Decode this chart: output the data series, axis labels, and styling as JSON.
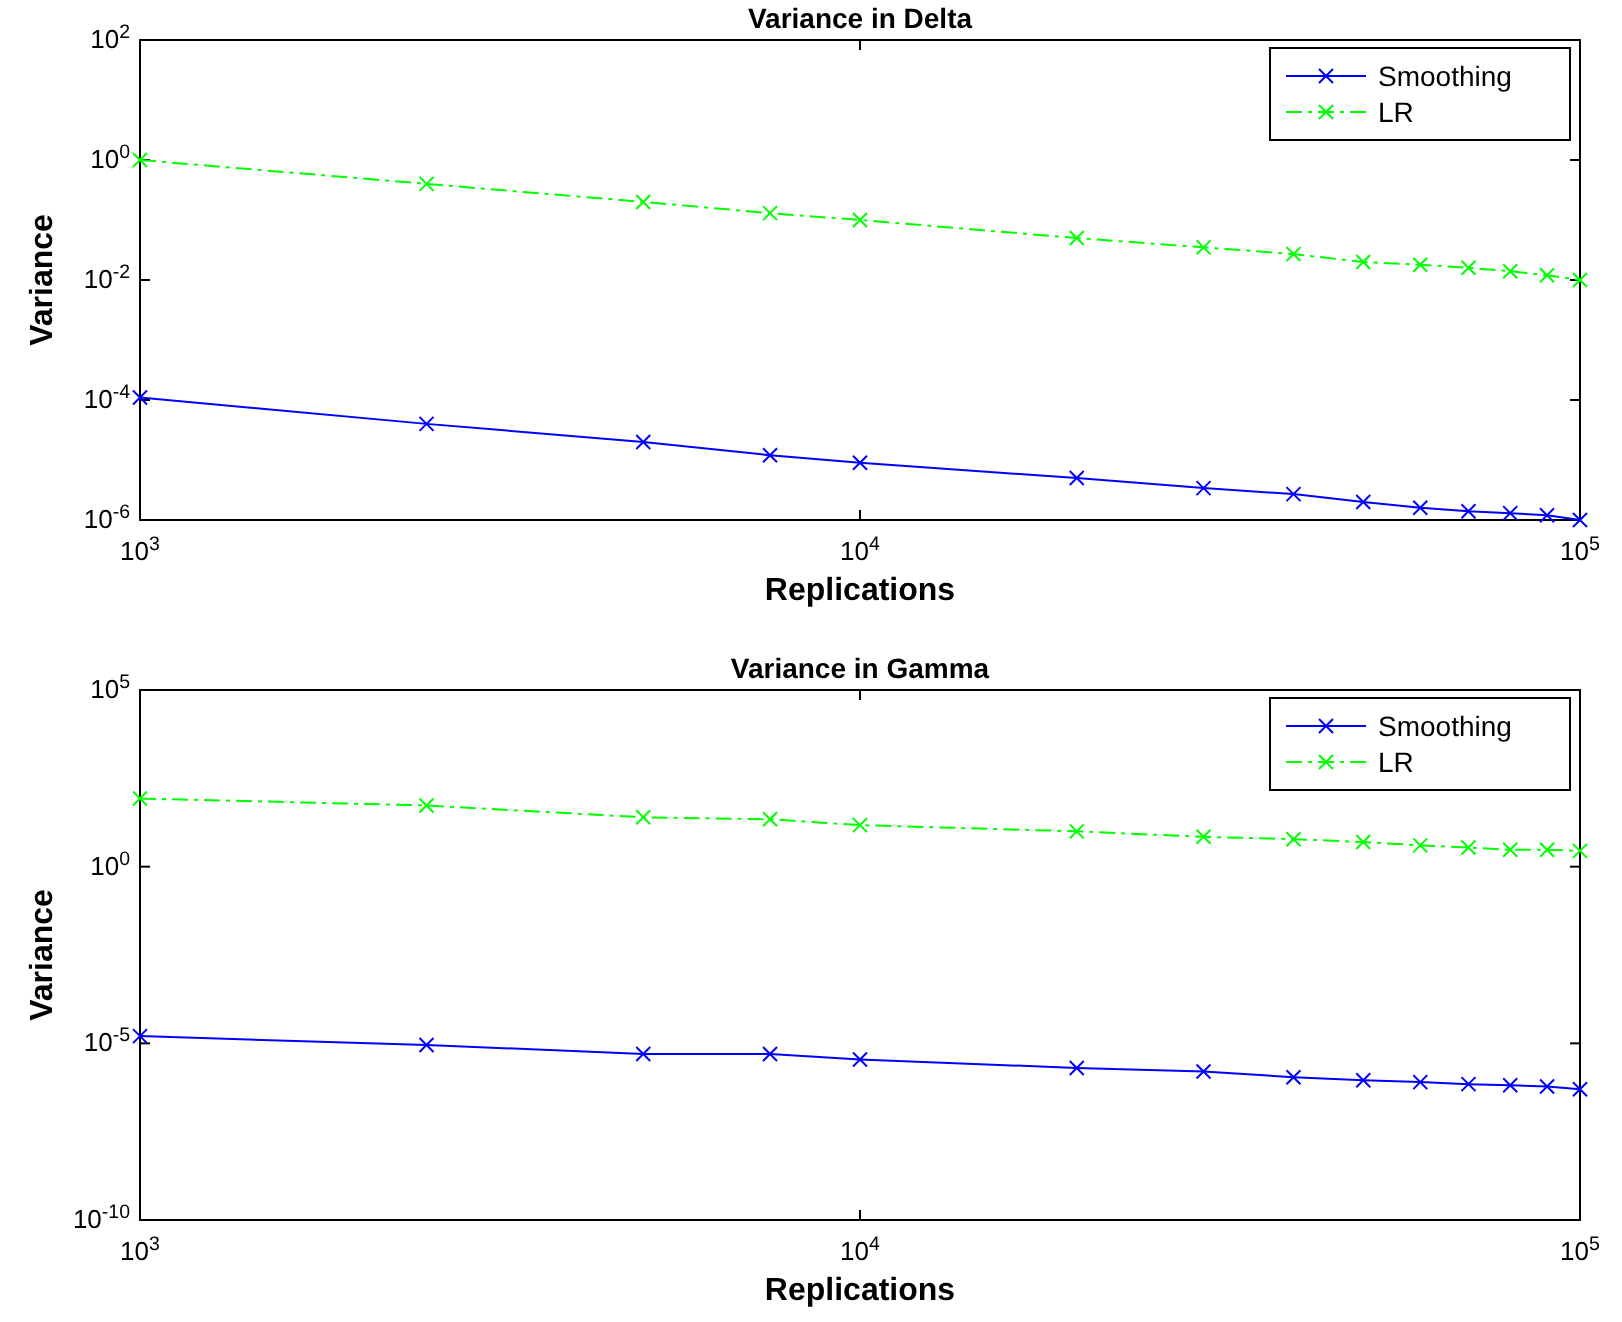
{
  "chart_data": [
    {
      "type": "line",
      "title": "Variance in Delta",
      "xlabel": "Replications",
      "ylabel": "Variance",
      "log": "xy",
      "x": [
        1000,
        2500,
        5000,
        7500,
        10000,
        20000,
        30000,
        40000,
        50000,
        60000,
        70000,
        80000,
        90000,
        100000
      ],
      "xlim": [
        1000,
        100000
      ],
      "xticks": [
        {
          "value": 1000,
          "label": "10$^{3}$"
        },
        {
          "value": 10000,
          "label": "10$^{4}$"
        },
        {
          "value": 100000,
          "label": "10$^{5}$"
        }
      ],
      "ylim": [
        1e-06,
        100
      ],
      "yticks": [
        {
          "value": 1e-06,
          "label": "10$^{-6}$"
        },
        {
          "value": 0.0001,
          "label": "10$^{-4}$"
        },
        {
          "value": 0.01,
          "label": "10$^{-2}$"
        },
        {
          "value": 1,
          "label": "10$^{0}$"
        },
        {
          "value": 100,
          "label": "10$^{2}$"
        }
      ],
      "legend": "top right",
      "grid": false,
      "series": [
        {
          "name": "Smoothing",
          "color": "#0000ff",
          "marker": "cross",
          "line_style": "solid",
          "values": [
            0.00011,
            4e-05,
            2e-05,
            1.2e-05,
            9e-06,
            5e-06,
            3.4e-06,
            2.7e-06,
            2e-06,
            1.6e-06,
            1.4e-06,
            1.3e-06,
            1.2e-06,
            1e-06
          ]
        },
        {
          "name": "LR",
          "color": "#00ff00",
          "marker": "cross",
          "line_style": "dashed",
          "values": [
            1,
            0.4,
            0.2,
            0.13,
            0.1,
            0.05,
            0.035,
            0.027,
            0.02,
            0.018,
            0.016,
            0.014,
            0.012,
            0.01
          ]
        }
      ]
    },
    {
      "type": "line",
      "title": "Variance in Gamma",
      "xlabel": "Replications",
      "ylabel": "Variance",
      "log": "xy",
      "x": [
        1000,
        2500,
        5000,
        7500,
        10000,
        20000,
        30000,
        40000,
        50000,
        60000,
        70000,
        80000,
        90000,
        100000
      ],
      "xlim": [
        1000,
        100000
      ],
      "xticks": [
        {
          "value": 1000,
          "label": "10$^{3}$"
        },
        {
          "value": 10000,
          "label": "10$^{4}$"
        },
        {
          "value": 100000,
          "label": "10$^{5}$"
        }
      ],
      "ylim": [
        1e-10,
        100000
      ],
      "yticks": [
        {
          "value": 1e-10,
          "label": "10$^{-10}$"
        },
        {
          "value": 1e-05,
          "label": "10$^{-5}$"
        },
        {
          "value": 1,
          "label": "10$^{0}$"
        },
        {
          "value": 100000,
          "label": "10$^{5}$"
        }
      ],
      "legend": "top right",
      "grid": false,
      "series": [
        {
          "name": "Smoothing",
          "color": "#0000ff",
          "marker": "cross",
          "line_style": "solid",
          "values": [
            1.6e-05,
            9e-06,
            5e-06,
            5e-06,
            3.5e-06,
            2e-06,
            1.6e-06,
            1.1e-06,
            9e-07,
            8e-07,
            7e-07,
            6.5e-07,
            6e-07,
            5e-07
          ]
        },
        {
          "name": "LR",
          "color": "#00ff00",
          "marker": "cross",
          "line_style": "dashed",
          "values": [
            85,
            54,
            25,
            22,
            15,
            10,
            7,
            6,
            5,
            4,
            3.5,
            3,
            3,
            2.8
          ]
        }
      ]
    }
  ]
}
